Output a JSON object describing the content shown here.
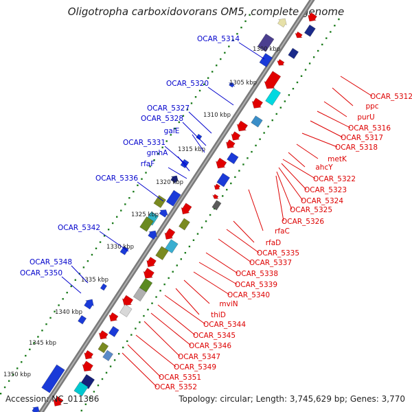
{
  "title": "Oligotropha carboxidovorans OM5, complete genome",
  "footer": {
    "accession": "Accession: NC_011386",
    "summary": "Topology: circular; Length: 3,745,629 bp; Genes: 3,770"
  },
  "colors": {
    "plus_strand_label": "#0000cc",
    "minus_strand_label": "#dd0000",
    "backbone": "#8c8c8c",
    "tick_dots": "#1a7a1a"
  },
  "scale_labels": [
    "1300 kbp",
    "1305 kbp",
    "1310 kbp",
    "1315 kbp",
    "1320 kbp",
    "1325 kbp",
    "1330 kbp",
    "1335 kbp",
    "1340 kbp",
    "1345 kbp",
    "1350 kbp"
  ],
  "plus_strand_genes": [
    "OCAR_5314",
    "OCAR_5320",
    "OCAR_5327",
    "OCAR_5328",
    "galE",
    "OCAR_5331",
    "gmhA",
    "rfaF",
    "OCAR_5336",
    "OCAR_5342",
    "OCAR_5348",
    "OCAR_5350"
  ],
  "minus_strand_genes": [
    "OCAR_5312",
    "ppc",
    "purU",
    "OCAR_5316",
    "OCAR_5317",
    "OCAR_5318",
    "metK",
    "ahcY",
    "OCAR_5322",
    "OCAR_5323",
    "OCAR_5324",
    "OCAR_5325",
    "OCAR_5326",
    "rfaC",
    "rfaD",
    "OCAR_5335",
    "OCAR_5337",
    "OCAR_5338",
    "OCAR_5339",
    "OCAR_5340",
    "mviN",
    "thiD",
    "OCAR_5344",
    "OCAR_5345",
    "OCAR_5346",
    "OCAR_5347",
    "OCAR_5349",
    "OCAR_5351",
    "OCAR_5352"
  ]
}
